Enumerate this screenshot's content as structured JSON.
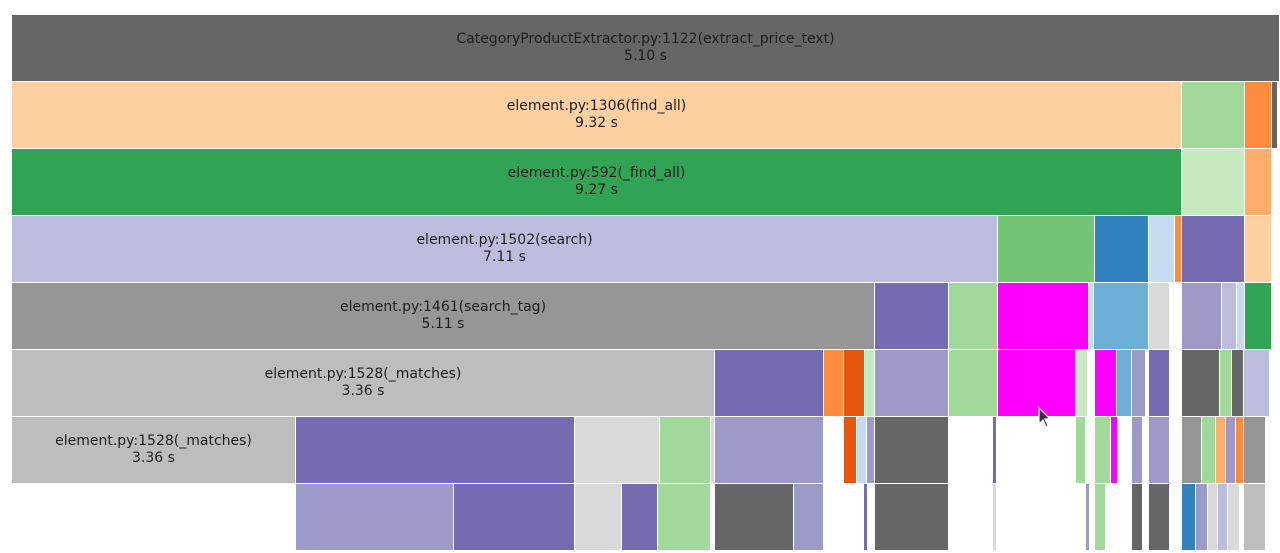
{
  "colors": {
    "darkgray": "#666666",
    "peach": "#fdd0a2",
    "green": "#31a354",
    "lavender": "#bcbddc",
    "gray": "#969696",
    "lightgray": "#bdbdbd",
    "purple": "#756bb1",
    "midpurple": "#9e9ac8",
    "lightgreen": "#a1d99b",
    "medgreen": "#74c476",
    "palegreen": "#c7e9c0",
    "blue": "#3182bd",
    "midblue": "#6baed6",
    "paleblue": "#c6dbef",
    "orange": "#fd8d3c",
    "darkorange": "#e6550d",
    "lightorange": "#fdae6b",
    "magenta": "#ff00ff",
    "silver": "#d9d9d9",
    "white": "#ffffff"
  },
  "frames": [
    {
      "id": "extract-price-text",
      "label": "CategoryProductExtractor.py:1122(extract_price_text)",
      "time": "5.10 s",
      "color": "darkgray"
    },
    {
      "id": "find-all",
      "label": "element.py:1306(find_all)",
      "time": "9.32 s",
      "color": "peach"
    },
    {
      "id": "private-find-all",
      "label": "element.py:592(_find_all)",
      "time": "9.27 s",
      "color": "green"
    },
    {
      "id": "search",
      "label": "element.py:1502(search)",
      "time": "7.11 s",
      "color": "lavender"
    },
    {
      "id": "search-tag",
      "label": "element.py:1461(search_tag)",
      "time": "5.11 s",
      "color": "gray"
    },
    {
      "id": "matches-1",
      "label": "element.py:1528(_matches)",
      "time": "3.36 s",
      "color": "lightgray"
    },
    {
      "id": "matches-2",
      "label": "element.py:1528(_matches)",
      "time": "3.36 s",
      "color": "lightgray"
    }
  ]
}
